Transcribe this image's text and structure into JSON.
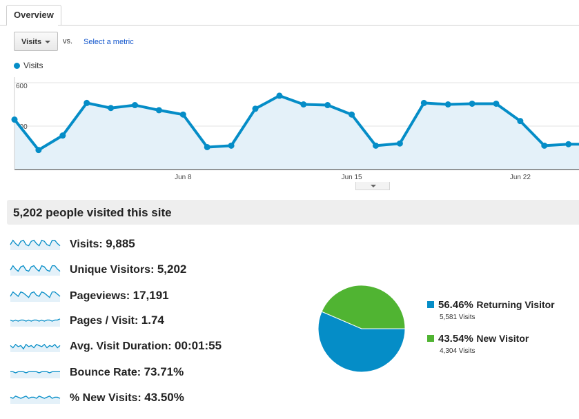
{
  "tabs": [
    {
      "label": "Overview"
    }
  ],
  "controls": {
    "metric_selected": "Visits",
    "vs_label": "vs.",
    "select_metric_link": "Select a metric"
  },
  "colors": {
    "visits": "#058dc7",
    "returning": "#058dc7",
    "new": "#50b432",
    "area_fill": "#e4f1f9"
  },
  "summary": {
    "headline": "5,202 people visited this site"
  },
  "chart_data": [
    {
      "type": "line",
      "series": [
        {
          "name": "Visits",
          "values": [
            345,
            135,
            235,
            460,
            425,
            445,
            410,
            380,
            155,
            165,
            420,
            510,
            450,
            445,
            380,
            165,
            180,
            460,
            450,
            455,
            455,
            335,
            165,
            175
          ]
        }
      ],
      "ytick_labels": [
        "600",
        "300"
      ],
      "yticks": [
        600,
        300
      ],
      "ylim": [
        0,
        600
      ],
      "xtick_labels": [
        "Jun 8",
        "Jun 15",
        "Jun 22"
      ],
      "xtick_index": [
        7,
        14,
        21
      ],
      "grid": true
    },
    {
      "type": "pie",
      "slices": [
        {
          "label": "Returning Visitor",
          "percent_label": "56.46%",
          "percent": 56.46,
          "count_label": "5,581 Visits"
        },
        {
          "label": "New Visitor",
          "percent_label": "43.54%",
          "percent": 43.54,
          "count_label": "4,304 Visits"
        }
      ]
    }
  ],
  "metrics": [
    {
      "label": "Visits:",
      "value": "9,885",
      "spark": [
        5,
        9,
        6,
        4,
        8,
        9,
        5,
        4,
        8,
        9,
        6,
        4,
        9,
        8,
        5,
        4,
        9,
        9,
        6,
        4
      ],
      "icon": "sparkline-icon"
    },
    {
      "label": "Unique Visitors:",
      "value": "5,202",
      "spark": [
        5,
        9,
        6,
        4,
        8,
        9,
        5,
        4,
        8,
        9,
        6,
        4,
        9,
        8,
        5,
        4,
        9,
        9,
        6,
        4
      ],
      "icon": "sparkline-icon"
    },
    {
      "label": "Pageviews:",
      "value": "17,191",
      "spark": [
        5,
        9,
        7,
        5,
        9,
        8,
        6,
        4,
        8,
        9,
        6,
        5,
        9,
        8,
        6,
        4,
        9,
        9,
        7,
        5
      ],
      "icon": "sparkline-icon"
    },
    {
      "label": "Pages / Visit:",
      "value": "1.74",
      "spark": [
        6,
        5,
        6,
        5,
        6,
        6,
        5,
        6,
        5,
        6,
        6,
        5,
        6,
        5,
        6,
        6,
        5,
        6,
        6,
        7
      ],
      "icon": "sparkline-icon"
    },
    {
      "label": "Avg. Visit Duration:",
      "value": "00:01:55",
      "spark": [
        6,
        4,
        7,
        5,
        6,
        3,
        7,
        5,
        6,
        4,
        7,
        6,
        5,
        7,
        4,
        6,
        5,
        7,
        4,
        6
      ],
      "icon": "sparkline-icon"
    },
    {
      "label": "Bounce Rate:",
      "value": "73.71%",
      "spark": [
        6,
        6,
        5,
        6,
        6,
        6,
        5,
        6,
        6,
        6,
        6,
        5,
        6,
        6,
        6,
        5,
        6,
        6,
        6,
        6
      ],
      "icon": "sparkline-icon"
    },
    {
      "label": "% New Visits:",
      "value": "43.50%",
      "spark": [
        6,
        5,
        7,
        6,
        5,
        6,
        7,
        5,
        6,
        6,
        5,
        7,
        6,
        5,
        6,
        7,
        5,
        6,
        6,
        5
      ],
      "icon": "sparkline-icon"
    }
  ]
}
